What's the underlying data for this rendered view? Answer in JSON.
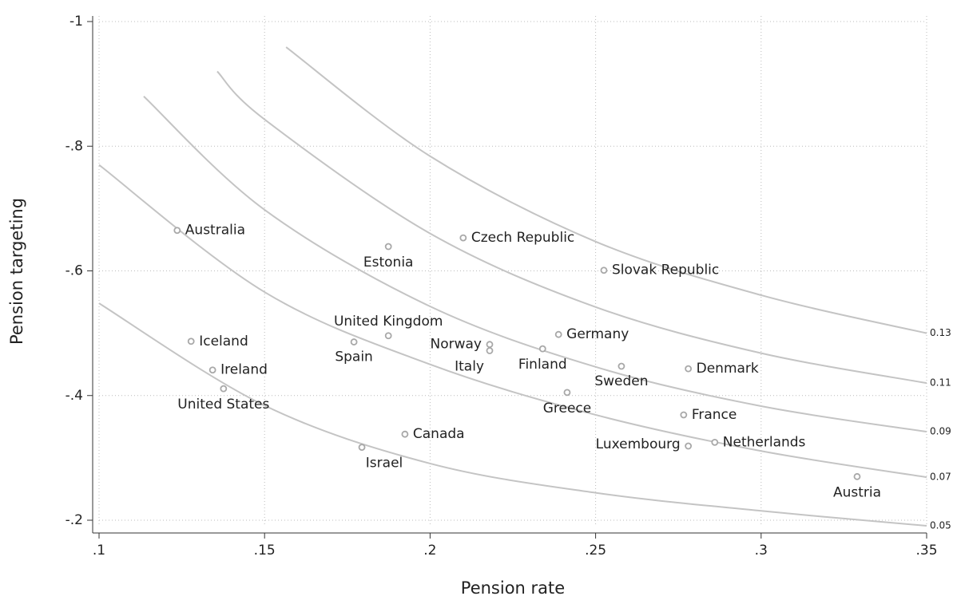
{
  "chart_data": {
    "type": "scatter",
    "xlabel": "Pension rate",
    "ylabel": "Pension targeting",
    "xlim": [
      0.1,
      0.35
    ],
    "ylim": [
      -0.2,
      -1
    ],
    "xticks": [
      {
        "value": 0.1,
        "label": ".1"
      },
      {
        "value": 0.15,
        "label": ".15"
      },
      {
        "value": 0.2,
        "label": ".2"
      },
      {
        "value": 0.25,
        "label": ".25"
      },
      {
        "value": 0.3,
        "label": ".3"
      },
      {
        "value": 0.35,
        "label": ".35"
      }
    ],
    "yticks": [
      -1,
      {
        "value": -0.8,
        "label": "-.8"
      },
      {
        "value": -0.6,
        "label": "-.6"
      },
      {
        "value": -0.4,
        "label": "-.4"
      },
      {
        "value": -0.2,
        "label": "-.2"
      }
    ],
    "grid": true,
    "point_color": "#a8a8a8",
    "curve_color": "#c4c4c4",
    "points": {
      "labels": [
        "Australia",
        "Estonia",
        "Czech Republic",
        "Slovak Republic",
        "Iceland",
        "United Kingdom",
        "Spain",
        "Norway",
        "Italy",
        "Germany",
        "Finland",
        "Sweden",
        "Denmark",
        "Ireland",
        "United States",
        "Greece",
        "France",
        "Canada",
        "Israel",
        "Luxembourg",
        "Netherlands",
        "Austria"
      ],
      "x": [
        0.1236,
        0.1874,
        0.21,
        0.2525,
        0.1278,
        0.1874,
        0.177,
        0.218,
        0.218,
        0.2388,
        0.234,
        0.2578,
        0.278,
        0.1343,
        0.1376,
        0.2414,
        0.2766,
        0.1924,
        0.1794,
        0.278,
        0.286,
        0.329
      ],
      "values": [
        -0.665,
        -0.639,
        -0.653,
        -0.601,
        -0.487,
        -0.496,
        -0.486,
        -0.482,
        -0.472,
        -0.498,
        -0.475,
        -0.447,
        -0.443,
        -0.441,
        -0.411,
        -0.405,
        -0.369,
        -0.338,
        -0.317,
        -0.319,
        -0.325,
        -0.27
      ]
    },
    "curves": [
      {
        "label": 0.05,
        "x": [
          0.1,
          0.15,
          0.2,
          0.25,
          0.3,
          0.35
        ],
        "values": [
          -0.548,
          -0.384,
          -0.291,
          -0.244,
          -0.215,
          -0.191
        ]
      },
      {
        "label": 0.07,
        "x": [
          0.1,
          0.15,
          0.2,
          0.25,
          0.3,
          0.35
        ],
        "values": [
          -0.77,
          -0.566,
          -0.45,
          -0.369,
          -0.311,
          -0.269
        ]
      },
      {
        "label": 0.09,
        "x": [
          0.1135,
          0.15,
          0.2,
          0.25,
          0.3,
          0.35
        ],
        "values": [
          -0.88,
          -0.698,
          -0.543,
          -0.446,
          -0.383,
          -0.342
        ]
      },
      {
        "label": 0.11,
        "x": [
          0.1357,
          0.15,
          0.2,
          0.25,
          0.3,
          0.35
        ],
        "values": [
          -0.92,
          -0.843,
          -0.66,
          -0.542,
          -0.468,
          -0.42
        ]
      },
      {
        "label": 0.13,
        "x": [
          0.1565,
          0.2,
          0.25,
          0.3,
          0.35
        ],
        "values": [
          -0.959,
          -0.784,
          -0.647,
          -0.561,
          -0.5
        ]
      }
    ]
  }
}
